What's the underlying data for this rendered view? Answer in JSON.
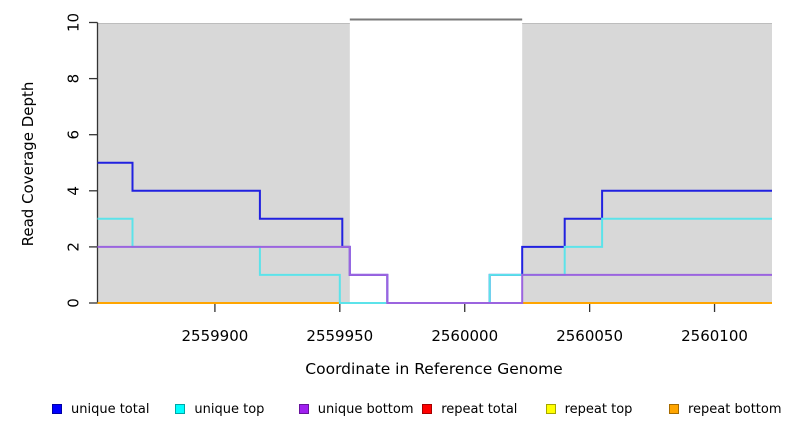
{
  "chart_data": {
    "type": "line",
    "step": true,
    "title": "",
    "xlabel": "Coordinate in Reference Genome",
    "ylabel": "Read Coverage Depth",
    "xlim": [
      2559853,
      2560123
    ],
    "ylim": [
      0,
      10
    ],
    "xticks": [
      2559900,
      2559950,
      2560000,
      2560050,
      2560100
    ],
    "yticks": [
      0,
      2,
      4,
      6,
      8,
      10
    ],
    "grid": false,
    "covered_regions": [
      [
        2559853,
        2559954
      ],
      [
        2560023,
        2560123
      ]
    ],
    "gap_region": [
      2559954,
      2560023
    ],
    "region_fill": "#d8d8d8",
    "region_edge": "#bdbdbd",
    "gap_marker_color": "#7a7a7a",
    "axis_color": "#333333",
    "series": [
      {
        "name": "repeat total",
        "color": "#e00000",
        "swatch": "#ff0000",
        "points": [
          [
            2559853,
            0
          ],
          [
            2560123,
            0
          ]
        ]
      },
      {
        "name": "repeat top",
        "color": "#f5e800",
        "swatch": "#ffff00",
        "points": [
          [
            2559853,
            0
          ],
          [
            2560123,
            0
          ]
        ]
      },
      {
        "name": "repeat bottom",
        "color": "#ffa500",
        "swatch": "#ffa500",
        "points": [
          [
            2559853,
            0
          ],
          [
            2560123,
            0
          ]
        ]
      },
      {
        "name": "unique total",
        "color": "#2121e0",
        "swatch": "#0000ff",
        "points": [
          [
            2559853,
            5
          ],
          [
            2559867,
            5
          ],
          [
            2559867,
            4
          ],
          [
            2559918,
            4
          ],
          [
            2559918,
            3
          ],
          [
            2559951,
            3
          ],
          [
            2559951,
            2
          ],
          [
            2559954,
            2
          ],
          [
            2559954,
            1
          ],
          [
            2559969,
            1
          ],
          [
            2559969,
            0
          ],
          [
            2560010,
            0
          ],
          [
            2560010,
            1
          ],
          [
            2560023,
            1
          ],
          [
            2560023,
            2
          ],
          [
            2560040,
            2
          ],
          [
            2560040,
            3
          ],
          [
            2560055,
            3
          ],
          [
            2560055,
            4
          ],
          [
            2560123,
            4
          ]
        ]
      },
      {
        "name": "unique top",
        "color": "#5ce3ea",
        "swatch": "#00ffff",
        "points": [
          [
            2559853,
            3
          ],
          [
            2559867,
            3
          ],
          [
            2559867,
            2
          ],
          [
            2559918,
            2
          ],
          [
            2559918,
            1
          ],
          [
            2559950,
            1
          ],
          [
            2559950,
            0
          ],
          [
            2560010,
            0
          ],
          [
            2560010,
            1
          ],
          [
            2560040,
            1
          ],
          [
            2560040,
            2
          ],
          [
            2560055,
            2
          ],
          [
            2560055,
            3
          ],
          [
            2560123,
            3
          ]
        ]
      },
      {
        "name": "unique bottom",
        "color": "#9b64df",
        "swatch": "#a020f0",
        "points": [
          [
            2559853,
            2
          ],
          [
            2559954,
            2
          ],
          [
            2559954,
            1
          ],
          [
            2559969,
            1
          ],
          [
            2559969,
            0
          ],
          [
            2560023,
            0
          ],
          [
            2560023,
            1
          ],
          [
            2560123,
            1
          ]
        ]
      }
    ],
    "legend": {
      "position": "bottom",
      "order": [
        "unique total",
        "unique top",
        "unique bottom",
        "repeat total",
        "repeat top",
        "repeat bottom"
      ]
    }
  }
}
